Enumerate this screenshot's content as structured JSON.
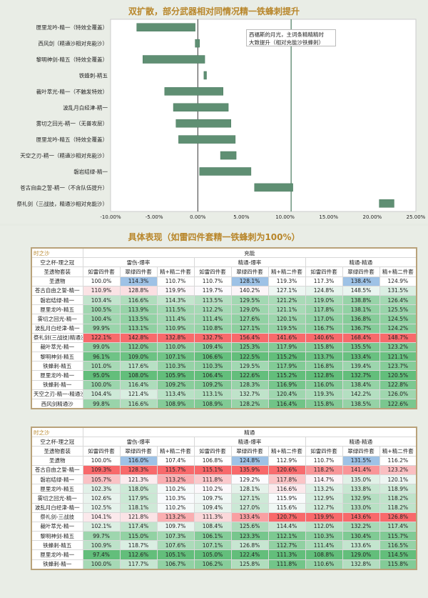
{
  "title": "双扩散，部分武器相对同情况精一铁蜂刺提升",
  "note_lines": [
    "西福斯的月光，主词条精精精时",
    "大致提升（相对充能沙铁蜂刺）"
  ],
  "colors": {
    "bar": "#5f8f73",
    "bar_stroke": "#4a7a5e",
    "refline": "#4a7a5e",
    "hi_blue": "#9ec2e6",
    "green_scale": "#63be7b",
    "red_scale": "#f8696b"
  },
  "chart_data": {
    "type": "bar",
    "orientation": "horizontal",
    "title": "双扩散，部分武器相对同情况精一铁蜂刺提升",
    "categories": [
      "匣里龙吟-精一（特效全覆盖）",
      "西风剑（精通沙相对充能沙）",
      "黎明神剑-精五（特效全覆盖）",
      "铁蜂刺-精五",
      "裁叶萃光-精一（不触发特效）",
      "波乱月白经津-精一",
      "雾切之回光-精一（无普攻层）",
      "匣里龙吟-精五（特效全覆盖）",
      "天空之刃-精一（精通沙相对充能沙）",
      "磐岩结绿-精一",
      "苍古自由之誓-精一（不含队伍提升）",
      "祭礼剑（三战技，精通沙相对充能沙）"
    ],
    "ranges": [
      [
        -7.0,
        -0.3
      ],
      [
        -0.3,
        0.2
      ],
      [
        -6.3,
        0.8
      ],
      [
        0.7,
        1.0
      ],
      [
        -3.8,
        2.9
      ],
      [
        -2.8,
        3.5
      ],
      [
        -2.5,
        3.8
      ],
      [
        -2.2,
        4.3
      ],
      [
        2.6,
        4.4
      ],
      [
        0.2,
        6.1
      ],
      [
        6.5,
        10.9
      ],
      [
        20.8,
        22.5
      ]
    ],
    "reference_value": 10.7,
    "xlim": [
      -10,
      25
    ],
    "xticks": [
      "-10.00%",
      "-5.00%",
      "0.00%",
      "5.00%",
      "10.00%",
      "15.00%",
      "20.00%",
      "25.00%"
    ]
  },
  "section2_title": "具体表现（如雷四件套精一铁蜂刺为100%）",
  "tables": [
    {
      "top_left": "时之沙",
      "group_label": "充能",
      "cup": "空之杯-理之冠",
      "artifact_label": "圣遗物套装",
      "groups": [
        "雷伤-爆率",
        "精通-爆率",
        "精通-精通"
      ],
      "subcols": [
        "如雷四件套",
        "翠绿四件套",
        "精+精二件套",
        "如雷四件套",
        "翠绿四件套",
        "精+精二件套",
        "如雷四件套",
        "翠绿四件套",
        "精+精二件套"
      ],
      "rows": [
        {
          "name": "圣遗物",
          "values": [
            "100.0%",
            "114.3%",
            "110.7%",
            "110.7%",
            "128.1%",
            "119.3%",
            "117.3%",
            "138.4%",
            "124.9%"
          ]
        },
        {
          "name": "苍古自由之誓-精一",
          "values": [
            "110.9%",
            "128.8%",
            "119.9%",
            "119.7%",
            "140.2%",
            "127.1%",
            "124.8%",
            "148.5%",
            "131.5%"
          ]
        },
        {
          "name": "磐岩结绿-精一",
          "values": [
            "103.4%",
            "116.6%",
            "114.3%",
            "113.5%",
            "129.5%",
            "121.2%",
            "119.0%",
            "138.8%",
            "126.4%"
          ]
        },
        {
          "name": "匣里龙吟-精五",
          "values": [
            "100.5%",
            "113.9%",
            "111.5%",
            "112.2%",
            "129.0%",
            "121.1%",
            "117.8%",
            "138.1%",
            "125.5%"
          ]
        },
        {
          "name": "雾切之回光-精一",
          "values": [
            "100.4%",
            "113.5%",
            "111.4%",
            "111.4%",
            "127.6%",
            "120.1%",
            "117.0%",
            "136.8%",
            "124.5%"
          ]
        },
        {
          "name": "波乱月白经津-精一",
          "values": [
            "99.9%",
            "113.1%",
            "110.9%",
            "110.8%",
            "127.1%",
            "119.5%",
            "116.7%",
            "136.7%",
            "124.2%"
          ]
        },
        {
          "name": "祭礼剑(三战技)精通沙",
          "values": [
            "122.1%",
            "142.8%",
            "132.8%",
            "132.7%",
            "156.4%",
            "141.6%",
            "140.6%",
            "168.4%",
            "148.7%"
          ]
        },
        {
          "name": "裁叶萃光-精一",
          "values": [
            "99.0%",
            "112.0%",
            "110.0%",
            "109.4%",
            "125.3%",
            "117.9%",
            "115.8%",
            "135.5%",
            "123.2%"
          ]
        },
        {
          "name": "黎明神剑-精五",
          "values": [
            "96.1%",
            "109.0%",
            "107.1%",
            "106.6%",
            "122.5%",
            "115.2%",
            "113.7%",
            "133.4%",
            "121.1%"
          ]
        },
        {
          "name": "铁蜂刺-精五",
          "values": [
            "101.0%",
            "117.6%",
            "110.3%",
            "110.3%",
            "129.5%",
            "117.9%",
            "116.8%",
            "139.4%",
            "123.7%"
          ]
        },
        {
          "name": "匣里龙吟-精一",
          "values": [
            "95.0%",
            "108.0%",
            "105.9%",
            "106.4%",
            "122.6%",
            "115.2%",
            "112.8%",
            "132.7%",
            "120.5%"
          ]
        },
        {
          "name": "铁蜂刺-精一",
          "values": [
            "100.0%",
            "116.4%",
            "109.2%",
            "109.2%",
            "128.3%",
            "116.9%",
            "116.0%",
            "138.4%",
            "122.8%"
          ]
        },
        {
          "name": "天空之刃-精一-精通沙",
          "values": [
            "104.4%",
            "121.4%",
            "113.4%",
            "113.1%",
            "132.7%",
            "120.4%",
            "119.3%",
            "142.2%",
            "126.0%"
          ]
        },
        {
          "name": "西风剑精通沙",
          "values": [
            "99.8%",
            "116.6%",
            "108.9%",
            "108.9%",
            "128.2%",
            "116.4%",
            "115.8%",
            "138.5%",
            "122.6%"
          ]
        }
      ]
    },
    {
      "top_left": "时之沙",
      "group_label": "精通",
      "cup": "空之杯-理之冠",
      "artifact_label": "圣遗物套装",
      "groups": [
        "雷伤-爆率",
        "精通-爆率",
        "精通-精通"
      ],
      "subcols": [
        "如雷四件套",
        "翠绿四件套",
        "精+精二件套",
        "如雷四件套",
        "翠绿四件套",
        "精+精二件套",
        "如雷四件套",
        "翠绿四件套",
        "精+精二件套"
      ],
      "rows": [
        {
          "name": "圣遗物",
          "values": [
            "100.0%",
            "116.0%",
            "107.4%",
            "106.8%",
            "124.8%",
            "112.9%",
            "110.7%",
            "131.5%",
            "116.2%"
          ]
        },
        {
          "name": "苍古自由之誓-精一",
          "values": [
            "109.3%",
            "128.3%",
            "115.7%",
            "115.1%",
            "135.9%",
            "120.6%",
            "118.2%",
            "141.4%",
            "123.2%"
          ]
        },
        {
          "name": "磐岩结绿-精一",
          "values": [
            "105.7%",
            "121.3%",
            "113.2%",
            "111.8%",
            "129.2%",
            "117.8%",
            "114.7%",
            "135.0%",
            "120.1%"
          ]
        },
        {
          "name": "匣里龙吟-精五",
          "values": [
            "102.3%",
            "118.0%",
            "110.2%",
            "110.2%",
            "128.1%",
            "116.6%",
            "113.2%",
            "133.8%",
            "118.9%"
          ]
        },
        {
          "name": "雾切之回光-精一",
          "values": [
            "102.6%",
            "117.9%",
            "110.3%",
            "109.7%",
            "127.1%",
            "115.9%",
            "112.9%",
            "132.9%",
            "118.2%"
          ]
        },
        {
          "name": "波乱月白经津-精一",
          "values": [
            "102.5%",
            "118.1%",
            "110.2%",
            "109.4%",
            "127.0%",
            "115.6%",
            "112.7%",
            "133.0%",
            "118.2%"
          ]
        },
        {
          "name": "祭礼剑-三战技",
          "values": [
            "104.1%",
            "121.8%",
            "113.2%",
            "111.3%",
            "133.4%",
            "120.7%",
            "119.9%",
            "143.6%",
            "126.8%"
          ]
        },
        {
          "name": "裁叶萃光-精一",
          "values": [
            "102.1%",
            "117.4%",
            "109.7%",
            "108.4%",
            "125.6%",
            "114.4%",
            "112.0%",
            "132.2%",
            "117.4%"
          ]
        },
        {
          "name": "黎明神剑-精五",
          "values": [
            "99.7%",
            "115.0%",
            "107.3%",
            "106.1%",
            "123.3%",
            "112.1%",
            "110.3%",
            "130.4%",
            "115.7%"
          ]
        },
        {
          "name": "铁蜂刺-精五",
          "values": [
            "100.9%",
            "118.7%",
            "107.6%",
            "107.1%",
            "126.8%",
            "112.7%",
            "111.4%",
            "133.6%",
            "116.5%"
          ]
        },
        {
          "name": "匣里龙吟-精一",
          "values": [
            "97.4%",
            "112.6%",
            "105.1%",
            "105.0%",
            "122.4%",
            "111.3%",
            "108.8%",
            "129.0%",
            "114.5%"
          ]
        },
        {
          "name": "铁蜂刺-精一",
          "values": [
            "100.0%",
            "117.7%",
            "106.7%",
            "106.2%",
            "125.8%",
            "111.8%",
            "110.6%",
            "132.8%",
            "115.8%"
          ]
        }
      ]
    }
  ]
}
